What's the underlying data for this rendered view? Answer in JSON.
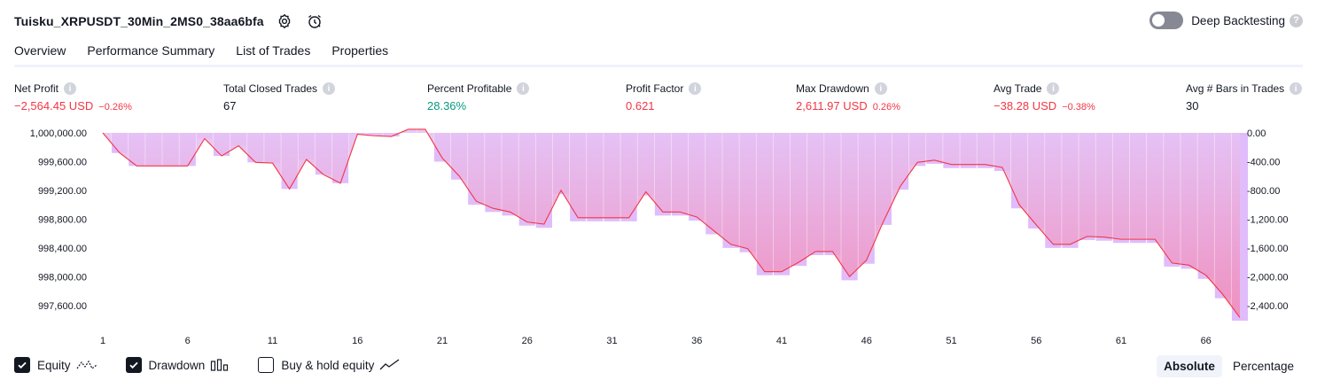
{
  "header": {
    "title": "Tuisku_XRPUSDT_30Min_2MS0_38aa6bfa",
    "deep_backtesting_label": "Deep Backtesting",
    "help_glyph": "?"
  },
  "tabs": [
    {
      "label": "Overview",
      "active": true
    },
    {
      "label": "Performance Summary",
      "active": false
    },
    {
      "label": "List of Trades",
      "active": false
    },
    {
      "label": "Properties",
      "active": false
    }
  ],
  "metrics": [
    {
      "label": "Net Profit",
      "value": "−2,564.45 USD",
      "pct": "−0.26%",
      "color": "red"
    },
    {
      "label": "Total Closed Trades",
      "value": "67",
      "pct": "",
      "color": "dark"
    },
    {
      "label": "Percent Profitable",
      "value": "28.36%",
      "pct": "",
      "color": "green"
    },
    {
      "label": "Profit Factor",
      "value": "0.621",
      "pct": "",
      "color": "red"
    },
    {
      "label": "Max Drawdown",
      "value": "2,611.97 USD",
      "pct": "0.26%",
      "color": "red"
    },
    {
      "label": "Avg Trade",
      "value": "−38.28 USD",
      "pct": "−0.38%",
      "color": "red"
    },
    {
      "label": "Avg # Bars in Trades",
      "value": "30",
      "pct": "",
      "color": "dark"
    }
  ],
  "legend": {
    "equity_label": "Equity",
    "drawdown_label": "Drawdown",
    "buyhold_label": "Buy & hold equity",
    "equity_checked": true,
    "drawdown_checked": true,
    "buyhold_checked": false
  },
  "mode": {
    "absolute_label": "Absolute",
    "percentage_label": "Percentage",
    "selected": "Absolute"
  },
  "colors": {
    "equity_line": "#f23645",
    "drawdown_bar": "#e0bcfb",
    "area_top": "#e6c3f6",
    "area_bottom": "#f08cb8",
    "brand_red": "#f23645",
    "brand_green": "#089981"
  },
  "chart_data": {
    "type": "area",
    "left_axis": {
      "ticks": [
        1000000,
        999600,
        999200,
        998800,
        998400,
        998000,
        997600
      ],
      "tick_labels": [
        "1,000,000.00",
        "999,600.00",
        "999,200.00",
        "998,800.00",
        "998,400.00",
        "998,000.00",
        "997,600.00"
      ],
      "range": [
        997425,
        1000000
      ]
    },
    "right_axis": {
      "ticks": [
        0,
        -400,
        -800,
        -1200,
        -1600,
        -2000,
        -2400
      ],
      "tick_labels": [
        "0.00",
        "-400.00",
        "-800.00",
        "-1,200.00",
        "-1,600.00",
        "-2,000.00",
        "-2,400.00"
      ],
      "range": [
        -2575,
        0
      ]
    },
    "x_ticks": [
      1,
      6,
      11,
      16,
      21,
      26,
      31,
      36,
      41,
      46,
      51,
      56,
      61,
      66
    ],
    "series": [
      {
        "name": "Equity",
        "x": [
          1,
          2,
          3,
          4,
          5,
          6,
          7,
          8,
          9,
          10,
          11,
          12,
          13,
          14,
          15,
          16,
          17,
          18,
          19,
          20,
          21,
          22,
          23,
          24,
          25,
          26,
          27,
          28,
          29,
          30,
          31,
          32,
          33,
          34,
          35,
          36,
          37,
          38,
          39,
          40,
          41,
          42,
          43,
          44,
          45,
          46,
          47,
          48,
          49,
          50,
          51,
          52,
          53,
          54,
          55,
          56,
          57,
          58,
          59,
          60,
          61,
          62,
          63,
          64,
          65,
          66,
          67,
          68
        ],
        "values": [
          1000000,
          999720,
          999540,
          999540,
          999540,
          999540,
          999920,
          999680,
          999820,
          999590,
          999580,
          999220,
          999630,
          999420,
          999300,
          999980,
          999960,
          999950,
          1000050,
          1000050,
          999650,
          999400,
          999050,
          998950,
          998900,
          998760,
          998730,
          999200,
          998820,
          998820,
          998820,
          998820,
          999180,
          998900,
          998900,
          998830,
          998640,
          998450,
          998390,
          998070,
          998070,
          998200,
          998350,
          998350,
          998000,
          998230,
          998770,
          999260,
          999590,
          999620,
          999560,
          999560,
          999560,
          999520,
          999000,
          998720,
          998450,
          998450,
          998560,
          998550,
          998520,
          998520,
          998520,
          998190,
          998160,
          998020,
          997750,
          997430
        ]
      },
      {
        "name": "Drawdown",
        "values": [
          0,
          -280,
          -460,
          -460,
          -460,
          -460,
          -80,
          -320,
          -180,
          -410,
          -420,
          -780,
          -370,
          -580,
          -700,
          -20,
          -40,
          -50,
          0,
          0,
          -400,
          -650,
          -1000,
          -1100,
          -1150,
          -1290,
          -1320,
          -850,
          -1230,
          -1230,
          -1230,
          -1230,
          -870,
          -1150,
          -1150,
          -1220,
          -1410,
          -1600,
          -1660,
          -1980,
          -1980,
          -1850,
          -1700,
          -1700,
          -2050,
          -1820,
          -1280,
          -790,
          -460,
          -430,
          -490,
          -490,
          -490,
          -530,
          -1050,
          -1330,
          -1600,
          -1600,
          -1490,
          -1500,
          -1530,
          -1530,
          -1530,
          -1860,
          -1890,
          -2030,
          -2300,
          -2612
        ]
      }
    ]
  }
}
